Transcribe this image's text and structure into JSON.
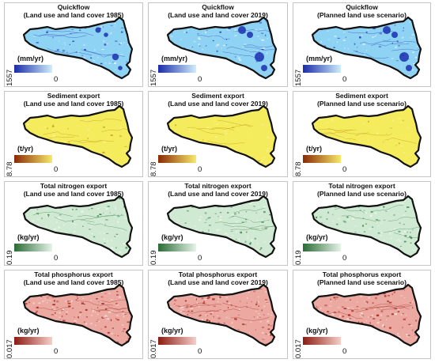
{
  "rows": [
    {
      "title": "Quickflow",
      "unit": "(mm/yr)",
      "max": "1557",
      "min": "0",
      "colors": {
        "base": "#8fd3f4",
        "dark": "#1b2fb0",
        "light": "#e8f7fd",
        "edge": "#111111",
        "bar_start": "#1a2ca8",
        "bar_end": "#cfeefb"
      }
    },
    {
      "title": "Sediment export",
      "unit": "(t/yr)",
      "max": "8.78",
      "min": "0",
      "colors": {
        "base": "#f4ec5c",
        "dark": "#b98a12",
        "light": "#faf5a8",
        "edge": "#111111",
        "bar_start": "#8a2a05",
        "bar_end": "#f7e96a"
      }
    },
    {
      "title": "Total nitrogen export",
      "unit": "(kg/yr)",
      "max": "0.19",
      "min": "0",
      "colors": {
        "base": "#cfe9d2",
        "dark": "#2e7a3c",
        "light": "#f0f8f1",
        "edge": "#111111",
        "bar_start": "#2a6b35",
        "bar_end": "#e6f4e8"
      }
    },
    {
      "title": "Total phosphorus export",
      "unit": "(kg/yr)",
      "max": "0.017",
      "min": "0",
      "colors": {
        "base": "#eba9a1",
        "dark": "#9c2218",
        "light": "#fbe7e4",
        "edge": "#111111",
        "bar_start": "#8a1c12",
        "bar_end": "#f6cfc9"
      }
    }
  ],
  "scenarios": [
    "(Land use and land cover 1985)",
    "(Land use and land cover 2019)",
    "(Planned land use scenario)"
  ]
}
